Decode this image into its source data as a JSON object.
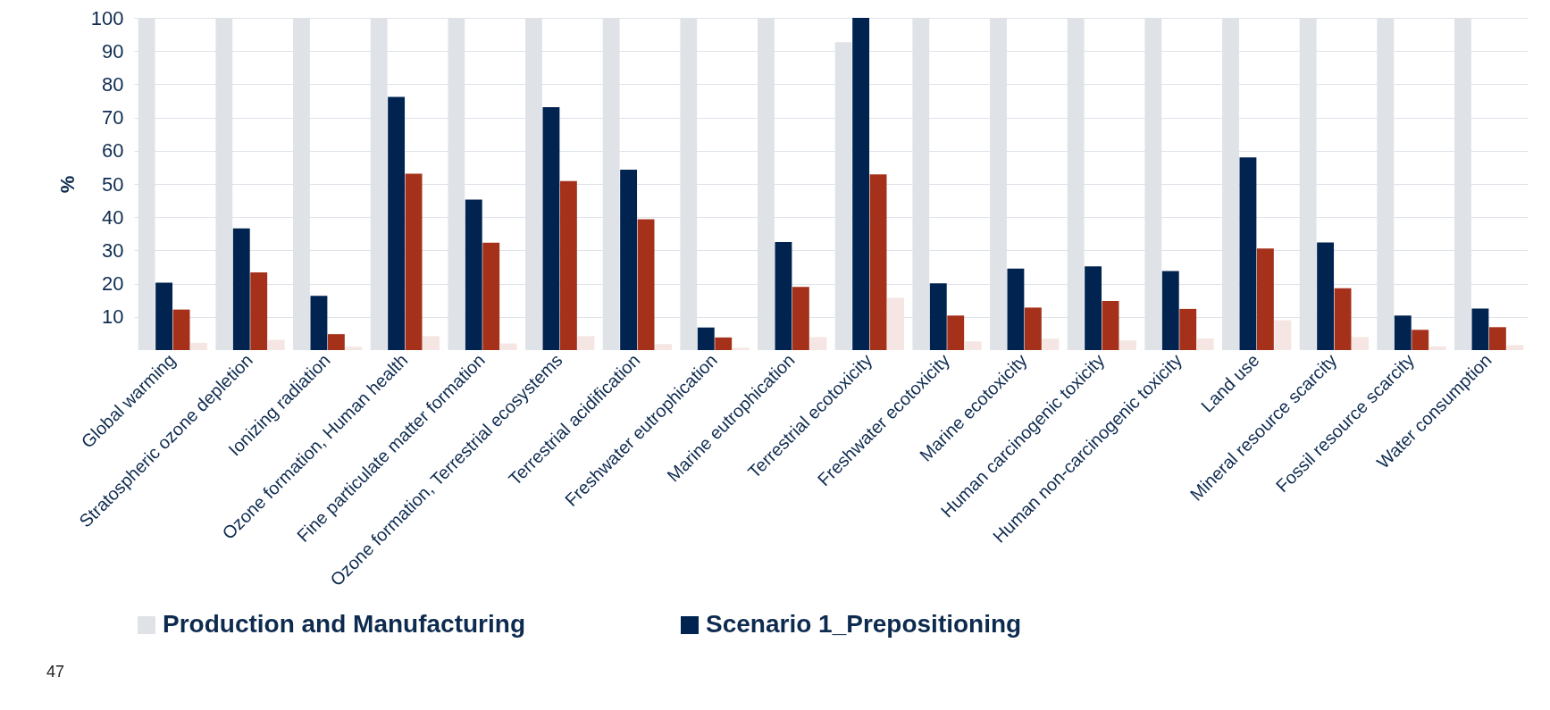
{
  "chart_data": {
    "type": "bar",
    "ylabel": "%",
    "categories": [
      "Global warming",
      "Stratospheric ozone depletion",
      "Ionizing radiation",
      "Ozone formation, Human health",
      "Fine particulate matter formation",
      "Ozone formation, Terrestrial ecosystems",
      "Terrestrial acidification",
      "Freshwater eutrophication",
      "Marine eutrophication",
      "Terrestrial ecotoxicity",
      "Freshwater ecotoxicity",
      "Marine ecotoxicity",
      "Human carcinogenic toxicity",
      "Human non-carcinogenic toxicity",
      "Land use",
      "Mineral resource scarcity",
      "Fossil resource scarcity",
      "Water consumption"
    ],
    "series": [
      {
        "name": "Production and Manufacturing",
        "color": "#dfe3e8",
        "values": [
          100,
          100,
          100,
          100,
          100,
          100,
          100,
          100,
          100,
          92.7,
          100,
          100,
          100,
          100,
          100,
          100,
          100,
          100
        ]
      },
      {
        "name": "Scenario 1_Prepositioning",
        "color": "#002350",
        "values": [
          20.3,
          36.6,
          16.3,
          76.2,
          45.3,
          73.1,
          54.3,
          6.8,
          32.5,
          100,
          20.1,
          24.5,
          25.2,
          23.8,
          58,
          32.4,
          10.4,
          12.5
        ]
      },
      {
        "color": "#a5311b",
        "values": [
          12.2,
          23.4,
          4.8,
          53.1,
          32.3,
          50.9,
          39.4,
          3.8,
          19,
          52.9,
          10.4,
          12.8,
          14.8,
          12.4,
          30.6,
          18.6,
          6.1,
          6.9
        ]
      },
      {
        "color": "#f5e6e3",
        "values": [
          2.2,
          3.1,
          1,
          4.2,
          2,
          4.2,
          1.8,
          0.7,
          3.9,
          15.7,
          2.6,
          3.4,
          2.9,
          3.5,
          9,
          3.9,
          1.1,
          1.5
        ]
      }
    ],
    "ylim": [
      0,
      100
    ],
    "yticks": [
      10,
      20,
      30,
      40,
      50,
      60,
      70,
      80,
      90,
      100
    ],
    "grid": "y",
    "legend": "bottom",
    "annotations": [
      "47"
    ]
  }
}
